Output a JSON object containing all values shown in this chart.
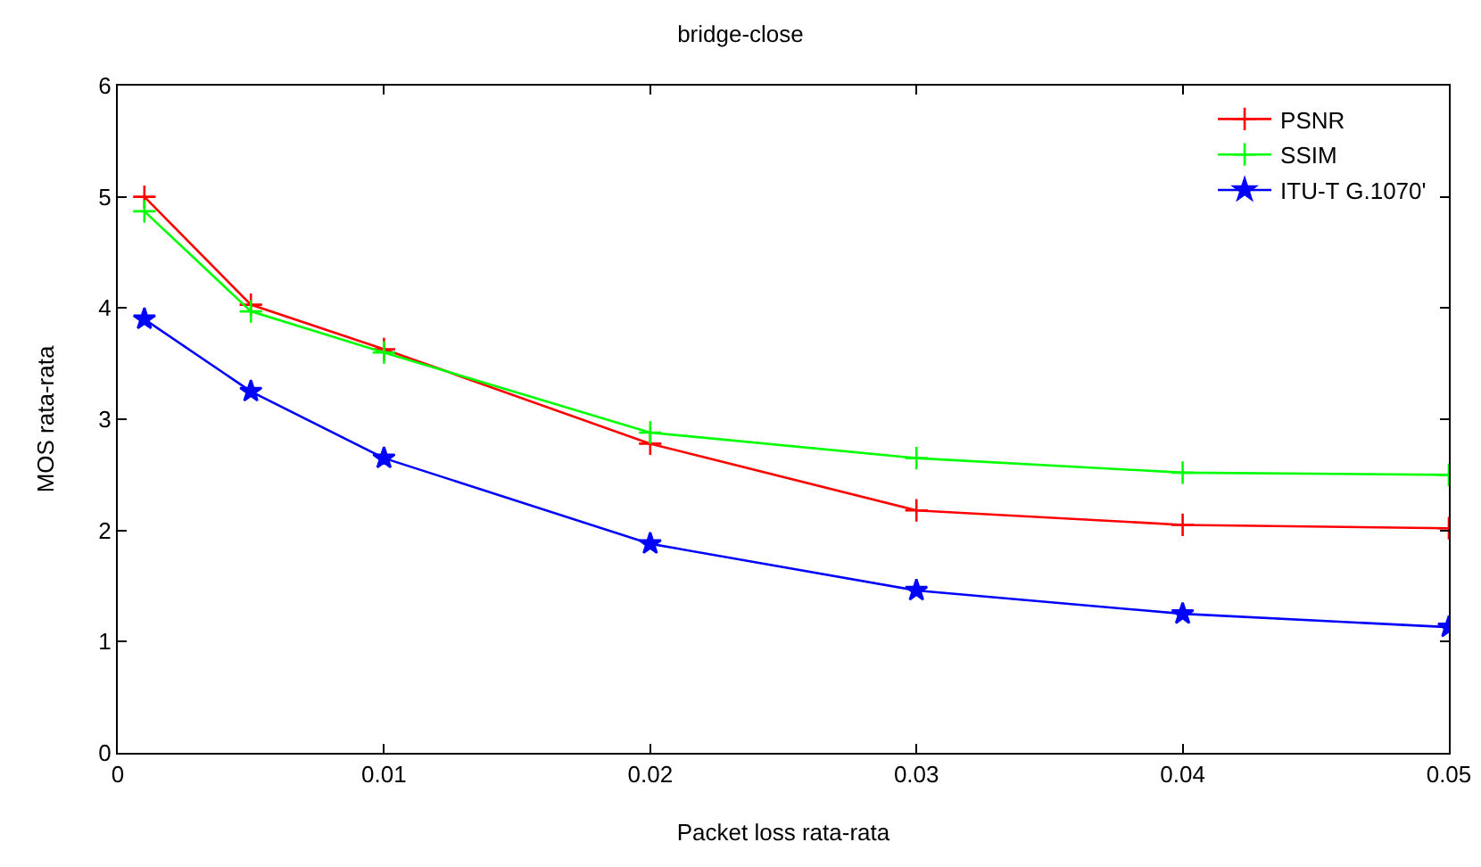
{
  "chart_data": {
    "type": "line",
    "title": "bridge-close",
    "xlabel": "Packet loss rata-rata",
    "ylabel": "MOS rata-rata",
    "x": [
      0.001,
      0.005,
      0.01,
      0.02,
      0.03,
      0.04,
      0.05
    ],
    "series": [
      {
        "name": "PSNR",
        "color": "#ff0000",
        "marker": "cross",
        "values": [
          5.0,
          4.03,
          3.63,
          2.78,
          2.18,
          2.05,
          2.02
        ]
      },
      {
        "name": "SSIM",
        "color": "#00ff00",
        "marker": "cross",
        "values": [
          4.87,
          3.97,
          3.6,
          2.88,
          2.65,
          2.52,
          2.5
        ]
      },
      {
        "name": "ITU-T G.1070'",
        "color": "#0000ff",
        "marker": "star",
        "values": [
          3.9,
          3.25,
          2.65,
          1.88,
          1.46,
          1.25,
          1.13
        ]
      }
    ],
    "xlim": [
      0,
      0.05
    ],
    "xticks": [
      0,
      0.01,
      0.02,
      0.03,
      0.04,
      0.05
    ],
    "ylim": [
      0,
      6
    ],
    "yticks": [
      0,
      1,
      2,
      3,
      4,
      5,
      6
    ],
    "grid": false,
    "legend": "top right",
    "line_style": "solid"
  }
}
